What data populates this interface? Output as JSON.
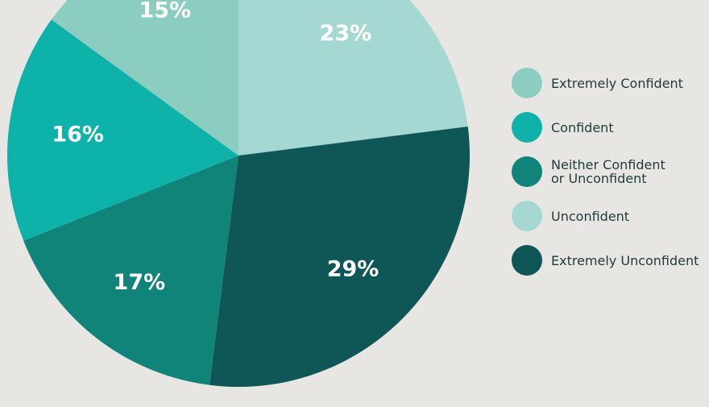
{
  "chart_data": {
    "type": "pie",
    "categories": [
      "Extremely Confident",
      "Confident",
      "Neither Confident or Unconfident",
      "Unconfident",
      "Extremely Unconfident"
    ],
    "values": [
      15,
      16,
      17,
      23,
      29
    ],
    "value_labels": [
      "15%",
      "16%",
      "17%",
      "23%",
      "29%"
    ],
    "colors": [
      "#8ccdc1",
      "#0db3a9",
      "#118479",
      "#a6d8d3",
      "#0f5656"
    ],
    "legend": "right"
  }
}
